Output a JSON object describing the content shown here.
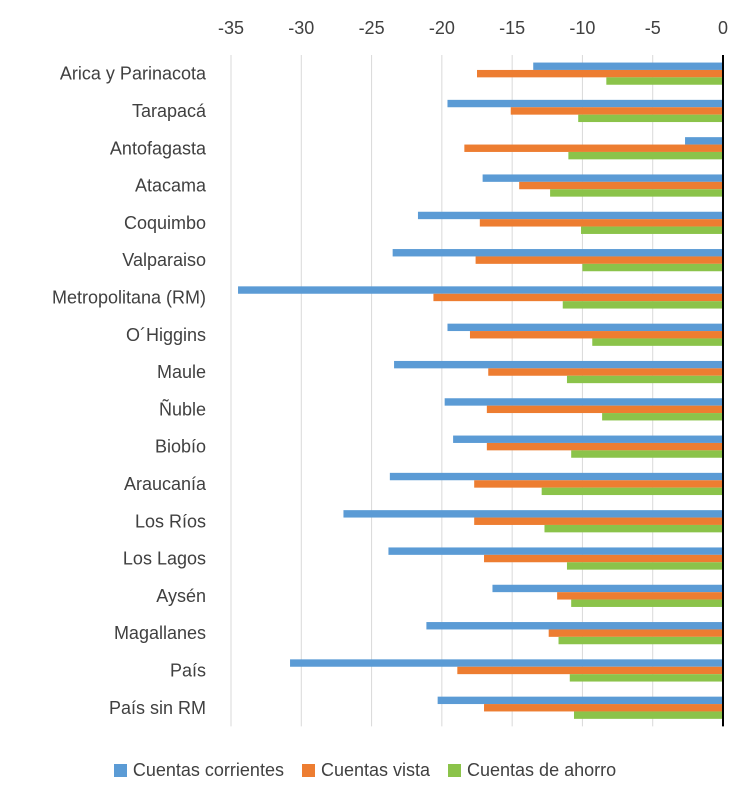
{
  "chart_data": {
    "type": "bar",
    "orientation": "horizontal",
    "xlim": [
      -35,
      0
    ],
    "x_ticks": [
      "-35",
      "-30",
      "-25",
      "-20",
      "-15",
      "-10",
      "-5",
      "0"
    ],
    "grid": "vertical",
    "legend_position": "bottom",
    "categories": [
      "Arica y Parinacota",
      "Tarapacá",
      "Antofagasta",
      "Atacama",
      "Coquimbo",
      "Valparaiso",
      "Metropolitana (RM)",
      "O´Higgins",
      "Maule",
      "Ñuble",
      "Biobío",
      "Araucanía",
      "Los Ríos",
      "Los Lagos",
      "Aysén",
      "Magallanes",
      "País",
      "País sin RM"
    ],
    "series": [
      {
        "name": "Cuentas corrientes",
        "color": "#5B9BD5",
        "values": [
          -13.5,
          -19.6,
          -2.7,
          -17.1,
          -21.7,
          -23.5,
          -34.5,
          -19.6,
          -23.4,
          -19.8,
          -19.2,
          -23.7,
          -27.0,
          -23.8,
          -16.4,
          -21.1,
          -30.8,
          -20.3
        ]
      },
      {
        "name": "Cuentas vista",
        "color": "#ED7D31",
        "values": [
          -17.5,
          -15.1,
          -18.4,
          -14.5,
          -17.3,
          -17.6,
          -20.6,
          -18.0,
          -16.7,
          -16.8,
          -16.8,
          -17.7,
          -17.7,
          -17.0,
          -11.8,
          -12.4,
          -18.9,
          -17.0
        ]
      },
      {
        "name": "Cuentas de ahorro",
        "color": "#8BC34A",
        "values": [
          -8.3,
          -10.3,
          -11.0,
          -12.3,
          -10.1,
          -10.0,
          -11.4,
          -9.3,
          -11.1,
          -8.6,
          -10.8,
          -12.9,
          -12.7,
          -11.1,
          -10.8,
          -11.7,
          -10.9,
          -10.6
        ]
      }
    ]
  }
}
